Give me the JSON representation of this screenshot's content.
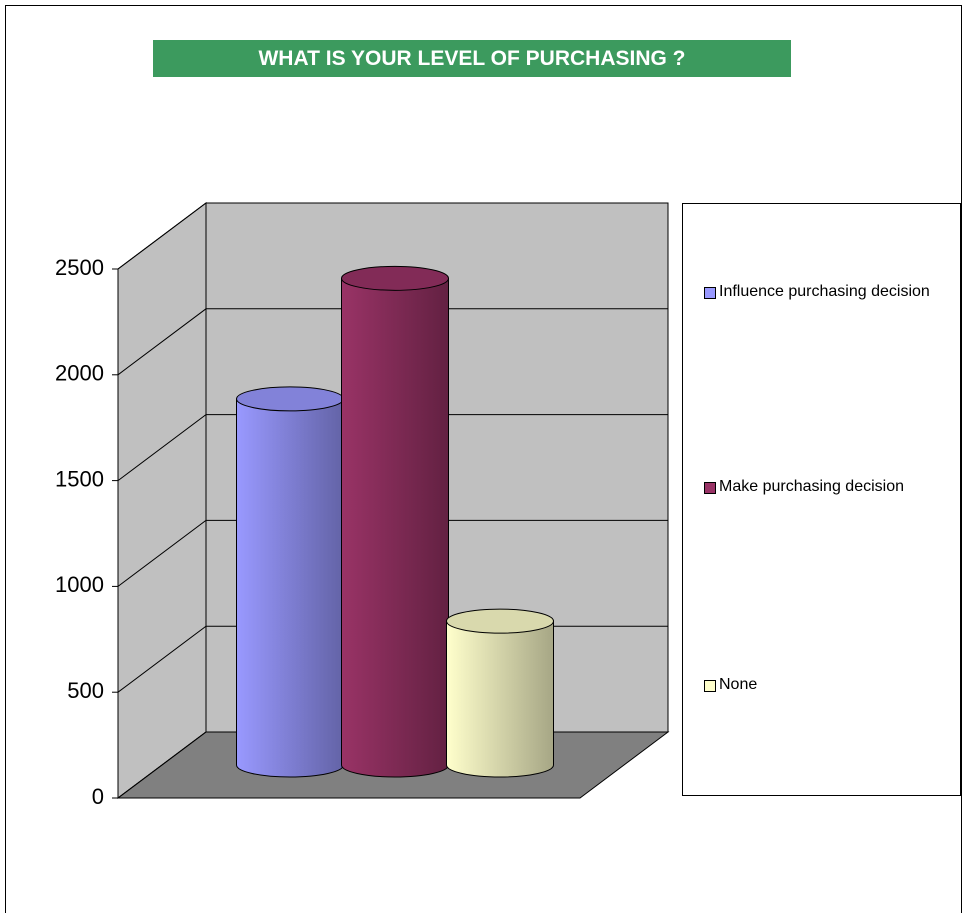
{
  "chart_data": {
    "type": "bar3d_cylinder",
    "title": "WHAT IS YOUR LEVEL OF PURCHASING ?",
    "series": [
      {
        "name": "Influence purchasing decision",
        "color": "#9999ff",
        "values": [
          1730
        ]
      },
      {
        "name": "Make purchasing decision",
        "color": "#993366",
        "values": [
          2300
        ]
      },
      {
        "name": "None",
        "color": "#ffffcc",
        "values": [
          680
        ]
      }
    ],
    "ylim": [
      0,
      2500
    ],
    "yticks": [
      0,
      500,
      1000,
      1500,
      2000,
      2500
    ],
    "grid": true,
    "legend": "right"
  }
}
